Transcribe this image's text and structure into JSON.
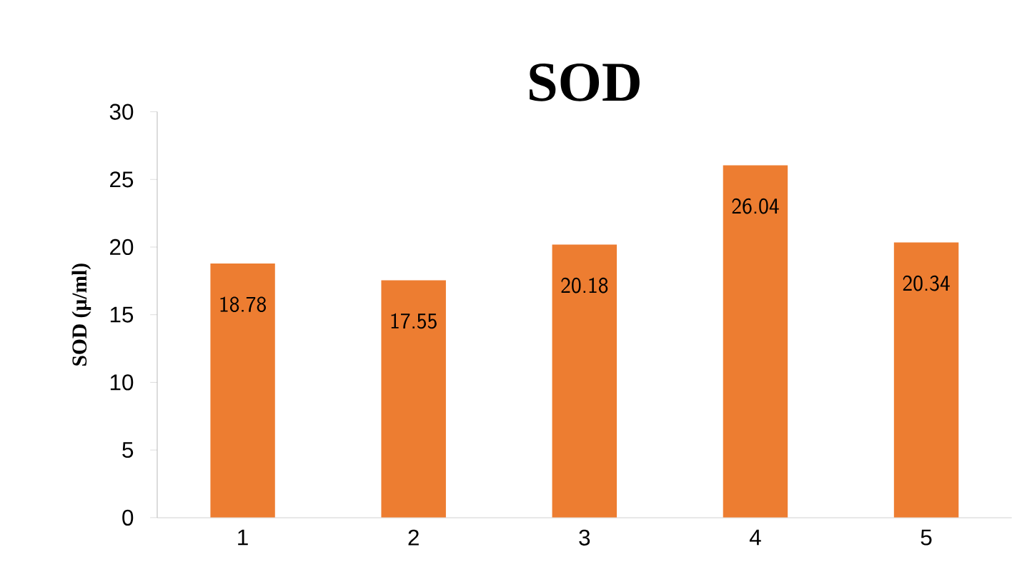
{
  "chart_data": {
    "type": "bar",
    "title": "SOD",
    "ylabel": "SOD (µ/ml)",
    "categories": [
      "1",
      "2",
      "3",
      "4",
      "5"
    ],
    "values": [
      18.78,
      17.55,
      20.18,
      26.04,
      20.34
    ],
    "color": "#ed7d31",
    "ylim": [
      0,
      30
    ],
    "yticks": [
      0,
      5,
      10,
      15,
      20,
      25,
      30
    ],
    "data_labels": true,
    "grid": false
  }
}
